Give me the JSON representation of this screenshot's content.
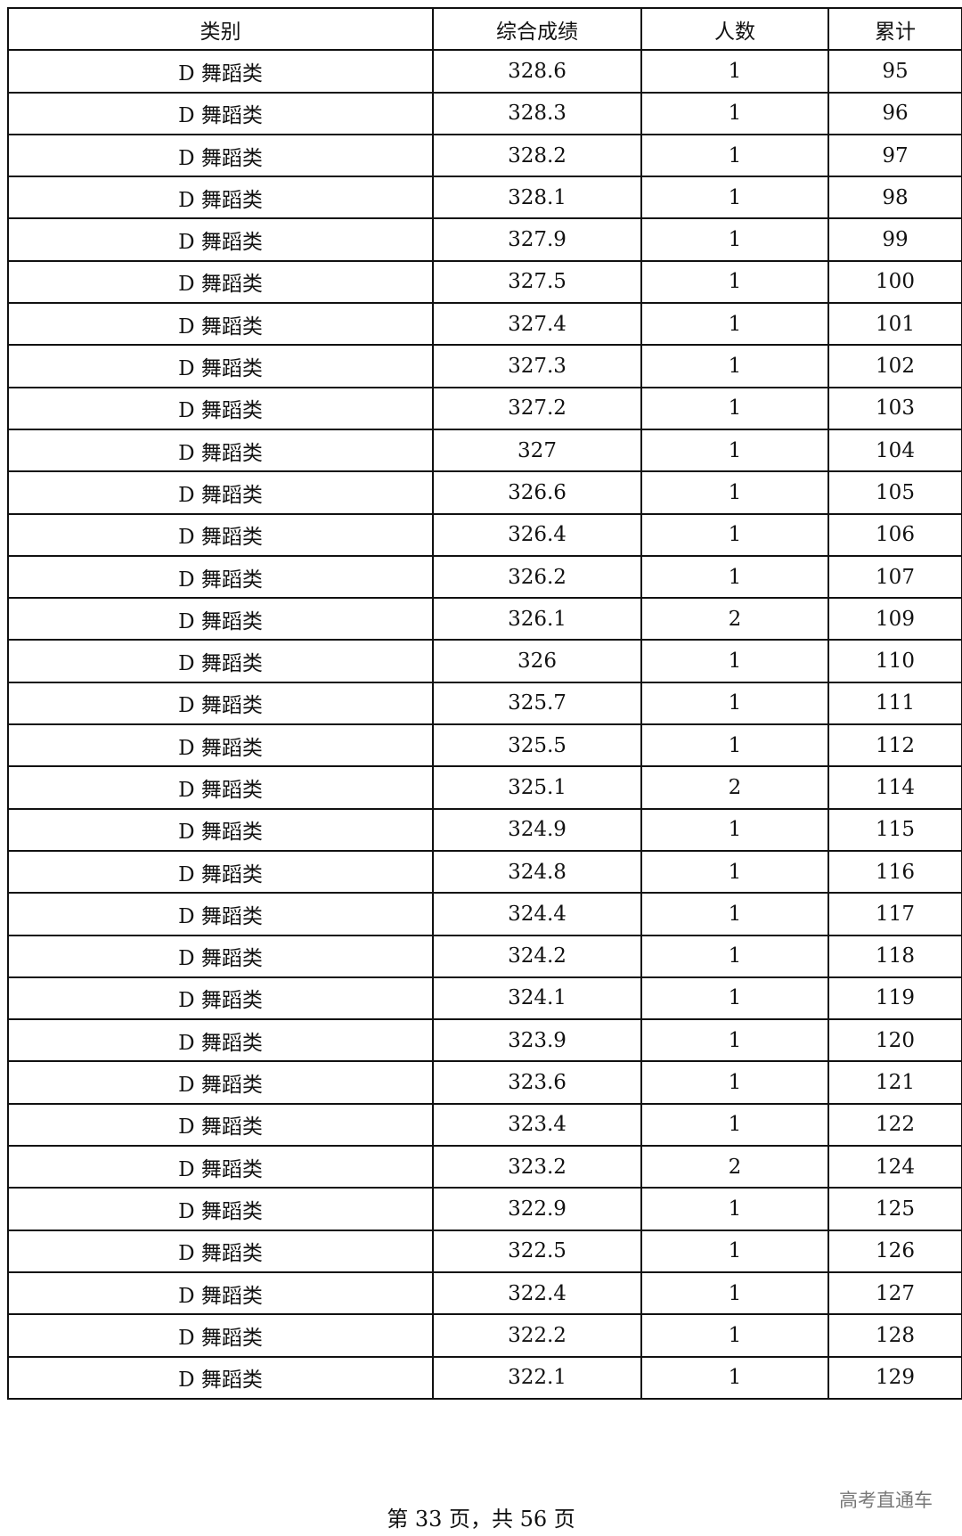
{
  "table": {
    "headers": [
      "类别",
      "综合成绩",
      "人数",
      "累计"
    ],
    "rows": [
      [
        "D 舞蹈类",
        "328.6",
        "1",
        "95"
      ],
      [
        "D 舞蹈类",
        "328.3",
        "1",
        "96"
      ],
      [
        "D 舞蹈类",
        "328.2",
        "1",
        "97"
      ],
      [
        "D 舞蹈类",
        "328.1",
        "1",
        "98"
      ],
      [
        "D 舞蹈类",
        "327.9",
        "1",
        "99"
      ],
      [
        "D 舞蹈类",
        "327.5",
        "1",
        "100"
      ],
      [
        "D 舞蹈类",
        "327.4",
        "1",
        "101"
      ],
      [
        "D 舞蹈类",
        "327.3",
        "1",
        "102"
      ],
      [
        "D 舞蹈类",
        "327.2",
        "1",
        "103"
      ],
      [
        "D 舞蹈类",
        "327",
        "1",
        "104"
      ],
      [
        "D 舞蹈类",
        "326.6",
        "1",
        "105"
      ],
      [
        "D 舞蹈类",
        "326.4",
        "1",
        "106"
      ],
      [
        "D 舞蹈类",
        "326.2",
        "1",
        "107"
      ],
      [
        "D 舞蹈类",
        "326.1",
        "2",
        "109"
      ],
      [
        "D 舞蹈类",
        "326",
        "1",
        "110"
      ],
      [
        "D 舞蹈类",
        "325.7",
        "1",
        "111"
      ],
      [
        "D 舞蹈类",
        "325.5",
        "1",
        "112"
      ],
      [
        "D 舞蹈类",
        "325.1",
        "2",
        "114"
      ],
      [
        "D 舞蹈类",
        "324.9",
        "1",
        "115"
      ],
      [
        "D 舞蹈类",
        "324.8",
        "1",
        "116"
      ],
      [
        "D 舞蹈类",
        "324.4",
        "1",
        "117"
      ],
      [
        "D 舞蹈类",
        "324.2",
        "1",
        "118"
      ],
      [
        "D 舞蹈类",
        "324.1",
        "1",
        "119"
      ],
      [
        "D 舞蹈类",
        "323.9",
        "1",
        "120"
      ],
      [
        "D 舞蹈类",
        "323.6",
        "1",
        "121"
      ],
      [
        "D 舞蹈类",
        "323.4",
        "1",
        "122"
      ],
      [
        "D 舞蹈类",
        "323.2",
        "2",
        "124"
      ],
      [
        "D 舞蹈类",
        "322.9",
        "1",
        "125"
      ],
      [
        "D 舞蹈类",
        "322.5",
        "1",
        "126"
      ],
      [
        "D 舞蹈类",
        "322.4",
        "1",
        "127"
      ],
      [
        "D 舞蹈类",
        "322.2",
        "1",
        "128"
      ],
      [
        "D 舞蹈类",
        "322.1",
        "1",
        "129"
      ]
    ]
  },
  "footer": {
    "page_text": "第 33 页，共 56 页"
  },
  "watermark": "高考直通车"
}
